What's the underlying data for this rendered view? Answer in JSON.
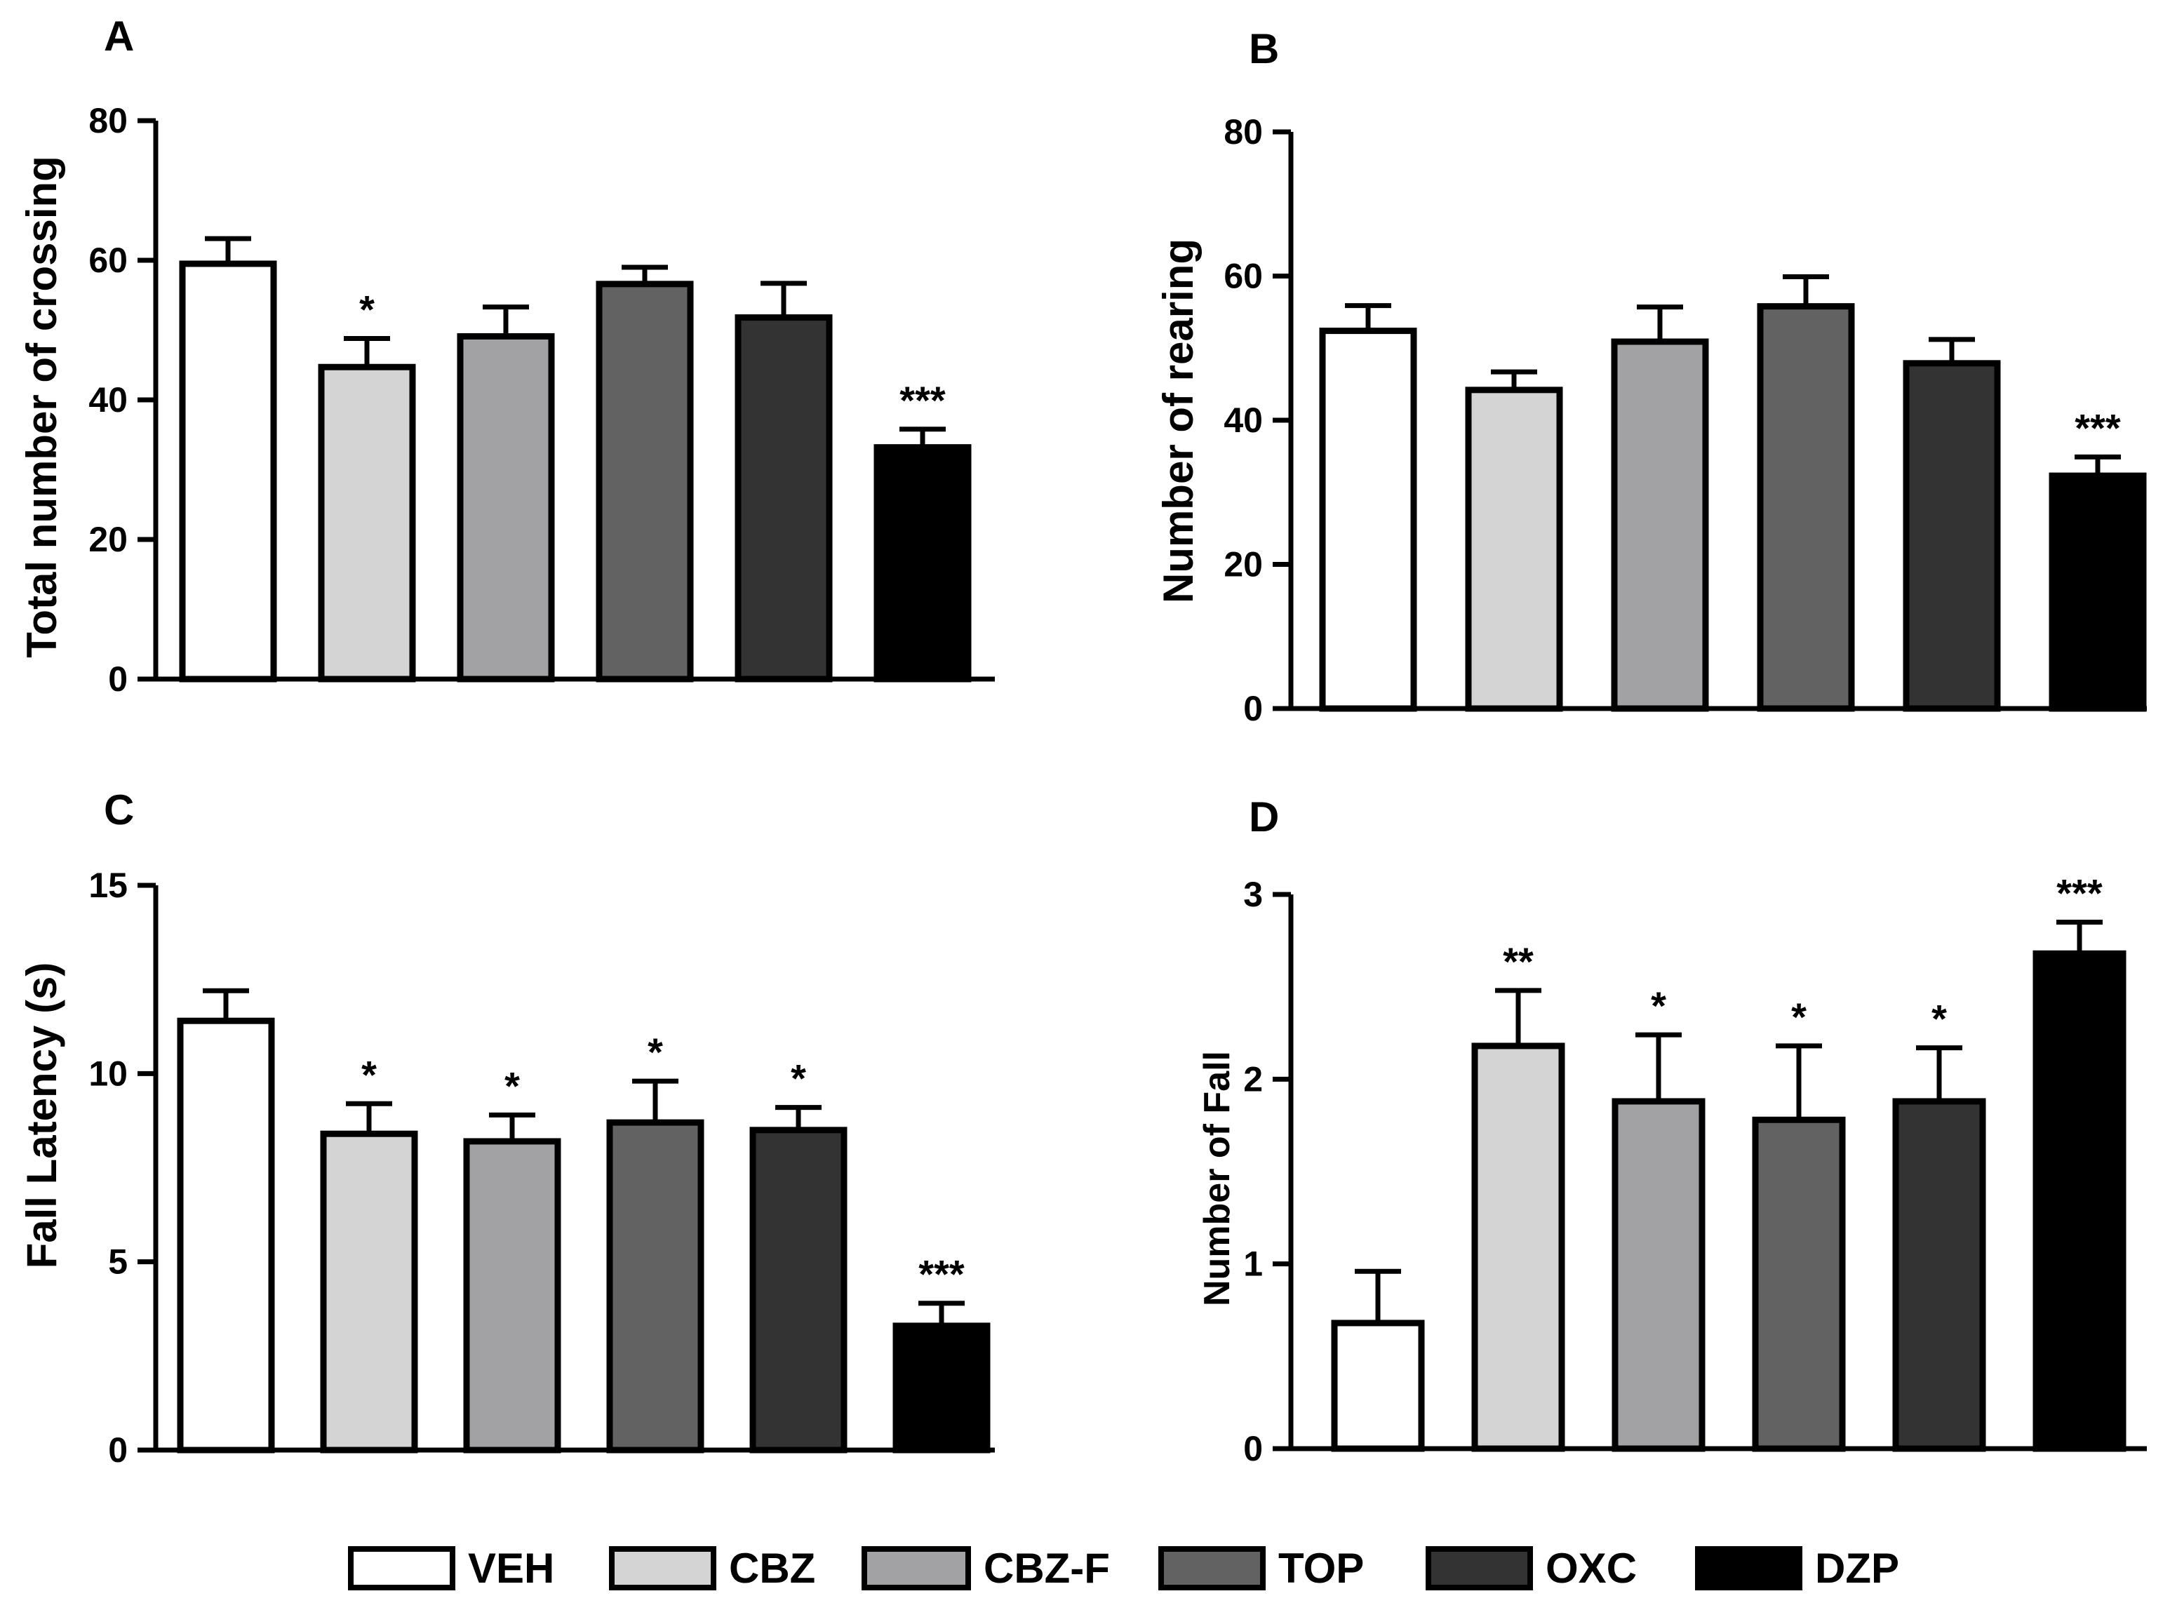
{
  "figure": {
    "groups": [
      "VEH",
      "CBZ",
      "CBZ-F",
      "TOP",
      "OXC",
      "DZP"
    ],
    "colors": [
      "#ffffff",
      "#d4d4d4",
      "#a2a2a5",
      "#626262",
      "#333333",
      "#000000"
    ]
  },
  "chart_data": [
    {
      "panel": "A",
      "type": "bar",
      "ylabel": "Total number of crossing",
      "xlabel": "",
      "ylim": [
        0,
        80
      ],
      "yticks": [
        0,
        20,
        40,
        60,
        80
      ],
      "categories": [
        "VEH",
        "CBZ",
        "CBZ-F",
        "TOP",
        "OXC",
        "DZP"
      ],
      "values": [
        59.5,
        44.7,
        49.1,
        56.6,
        51.8,
        33.2
      ],
      "errors": [
        3.6,
        4.1,
        4.2,
        2.4,
        4.9,
        2.6
      ],
      "annotations": [
        "",
        "*",
        "",
        "",
        "",
        "***"
      ]
    },
    {
      "panel": "B",
      "type": "bar",
      "ylabel": "Number of rearing",
      "xlabel": "",
      "ylim": [
        0,
        80
      ],
      "yticks": [
        0,
        20,
        40,
        60,
        80
      ],
      "categories": [
        "VEH",
        "CBZ",
        "CBZ-F",
        "TOP",
        "OXC",
        "DZP"
      ],
      "values": [
        52.4,
        44.2,
        50.9,
        55.8,
        47.9,
        32.3
      ],
      "errors": [
        3.5,
        2.5,
        4.8,
        4.1,
        3.3,
        2.6
      ],
      "annotations": [
        "",
        "",
        "",
        "",
        "",
        "***"
      ]
    },
    {
      "panel": "C",
      "type": "bar",
      "ylabel": "Fall Latency (s)",
      "xlabel": "",
      "ylim": [
        0,
        15
      ],
      "yticks": [
        0,
        5,
        10,
        15
      ],
      "categories": [
        "VEH",
        "CBZ",
        "CBZ-F",
        "TOP",
        "OXC",
        "DZP"
      ],
      "values": [
        11.4,
        8.4,
        8.2,
        8.7,
        8.5,
        3.3
      ],
      "errors": [
        0.8,
        0.8,
        0.7,
        1.1,
        0.6,
        0.6
      ],
      "annotations": [
        "",
        "*",
        "*",
        "*",
        "*",
        "***"
      ]
    },
    {
      "panel": "D",
      "type": "bar",
      "ylabel": "Number of Fall",
      "xlabel": "",
      "ylim": [
        0,
        3
      ],
      "yticks": [
        0,
        1,
        2,
        3
      ],
      "categories": [
        "VEH",
        "CBZ",
        "CBZ-F",
        "TOP",
        "OXC",
        "DZP"
      ],
      "values": [
        0.68,
        2.18,
        1.88,
        1.78,
        1.88,
        2.68
      ],
      "errors": [
        0.28,
        0.3,
        0.36,
        0.4,
        0.29,
        0.17
      ],
      "annotations": [
        "",
        "**",
        "*",
        "*",
        "*",
        "***"
      ]
    }
  ]
}
